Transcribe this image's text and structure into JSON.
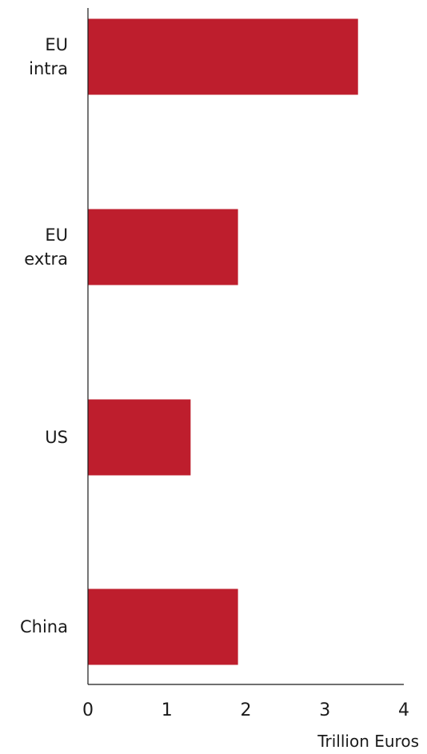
{
  "chart_data": {
    "type": "bar",
    "orientation": "horizontal",
    "categories": [
      [
        "EU",
        "intra"
      ],
      [
        "EU",
        "extra"
      ],
      [
        "US"
      ],
      [
        "China"
      ]
    ],
    "values": [
      3.42,
      1.9,
      1.3,
      1.9
    ],
    "xlabel": "Trillion Euros",
    "ylabel": "",
    "xlim": [
      0,
      4
    ],
    "x_ticks": [
      "0",
      "1",
      "2",
      "3",
      "4"
    ],
    "grid": false,
    "legend": "none",
    "bar_color": "#be1e2d",
    "axis_color": "#1a1a1a"
  }
}
